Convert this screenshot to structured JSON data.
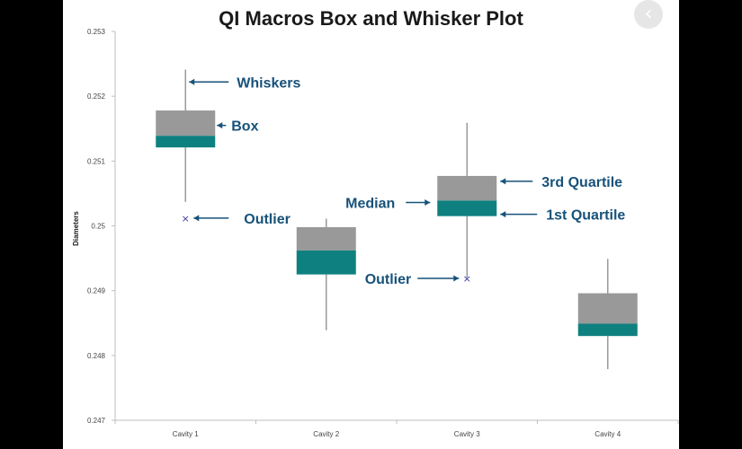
{
  "ui": {
    "close_icon": "close-icon",
    "close_glyph": "✕",
    "prev_icon": "chevron-left-icon",
    "prev_glyph": "‹"
  },
  "colors": {
    "upper_box": "#999999",
    "lower_box": "#0f8080",
    "whisker": "#9a9a9a",
    "annotation": "#17527a",
    "outlier": "#3a3aa0",
    "axis": "#bfbfbf"
  },
  "chart_data": {
    "type": "box",
    "title": "QI Macros Box and Whisker Plot",
    "ylabel": "Diameters",
    "xlabel": "",
    "ylim": [
      0.247,
      0.253
    ],
    "y_ticks": [
      "0.247",
      "0.248",
      "0.249",
      "0.25",
      "0.251",
      "0.252",
      "0.253"
    ],
    "categories": [
      "Cavity 1",
      "Cavity 2",
      "Cavity 3",
      "Cavity 4"
    ],
    "boxes": [
      {
        "category": "Cavity 1",
        "min": 0.25037,
        "q1": 0.25121,
        "median": 0.25139,
        "q3": 0.25178,
        "max": 0.25241,
        "outliers": [
          0.25012
        ]
      },
      {
        "category": "Cavity 2",
        "min": 0.24839,
        "q1": 0.24925,
        "median": 0.24962,
        "q3": 0.24998,
        "max": 0.25011,
        "outliers": []
      },
      {
        "category": "Cavity 3",
        "min": 0.2492,
        "q1": 0.25015,
        "median": 0.25039,
        "q3": 0.25077,
        "max": 0.25159,
        "outliers": [
          0.24919
        ]
      },
      {
        "category": "Cavity 4",
        "min": 0.24779,
        "q1": 0.2483,
        "median": 0.24849,
        "q3": 0.24896,
        "max": 0.24949,
        "outliers": []
      }
    ],
    "annotations": [
      {
        "label": "Whiskers",
        "box": 0,
        "target": "whisker"
      },
      {
        "label": "Box",
        "box": 0,
        "target": "box"
      },
      {
        "label": "Outlier",
        "box": 0,
        "target": "outlier"
      },
      {
        "label": "Median",
        "box": 2,
        "target": "median"
      },
      {
        "label": "3rd Quartile",
        "box": 2,
        "target": "q3"
      },
      {
        "label": "1st Quartile",
        "box": 2,
        "target": "q1"
      },
      {
        "label": "Outlier",
        "box": 2,
        "target": "outlier"
      }
    ],
    "grid": false,
    "legend": "none"
  }
}
